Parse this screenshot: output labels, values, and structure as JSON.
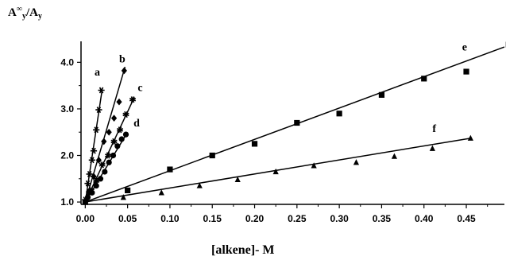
{
  "chart_data": {
    "type": "scatter",
    "title": "",
    "ylabel": {
      "main": "A",
      "sup": "∞",
      "sub_mid": "y",
      "slash": "/A",
      "sub_end": "y"
    },
    "xlabel": "[alkene]- M",
    "xlim": [
      -0.005,
      0.495
    ],
    "ylim": [
      0.95,
      4.45
    ],
    "x_ticks": [
      0.0,
      0.05,
      0.1,
      0.15,
      0.2,
      0.25,
      0.3,
      0.35,
      0.4,
      0.45
    ],
    "x_tick_labels": [
      "0.00",
      "0.05",
      "0.10",
      "0.15",
      "0.20",
      "0.25",
      "0.30",
      "0.35",
      "0.40",
      "0.45"
    ],
    "y_ticks": [
      1.0,
      2.0,
      3.0,
      4.0
    ],
    "y_tick_labels": [
      "1.0",
      "2.0",
      "3.0",
      "4.0"
    ],
    "grid": false,
    "series": [
      {
        "name": "a",
        "marker": "asterisk",
        "label": "a",
        "x": [
          0.0,
          0.003,
          0.005,
          0.008,
          0.01,
          0.013,
          0.016,
          0.019
        ],
        "y": [
          1.05,
          1.4,
          1.6,
          1.9,
          2.1,
          2.55,
          2.98,
          3.4
        ],
        "fit": {
          "x0": 0.0,
          "y0": 1.0,
          "x1": 0.02,
          "y1": 3.42
        },
        "label_pos": {
          "x": 0.011,
          "y": 3.72
        }
      },
      {
        "name": "b",
        "marker": "diamond",
        "label": "b",
        "x": [
          0.004,
          0.01,
          0.016,
          0.022,
          0.028,
          0.034,
          0.04,
          0.046
        ],
        "y": [
          1.22,
          1.55,
          1.9,
          2.3,
          2.5,
          2.8,
          3.15,
          3.82
        ],
        "fit": {
          "x0": 0.0,
          "y0": 1.0,
          "x1": 0.047,
          "y1": 3.9
        },
        "label_pos": {
          "x": 0.04,
          "y": 4.0
        }
      },
      {
        "name": "c",
        "marker": "star",
        "label": "c",
        "x": [
          0.007,
          0.013,
          0.02,
          0.027,
          0.034,
          0.041,
          0.048,
          0.056
        ],
        "y": [
          1.25,
          1.45,
          1.8,
          2.0,
          2.3,
          2.55,
          2.88,
          3.2
        ],
        "fit": {
          "x0": 0.0,
          "y0": 1.0,
          "x1": 0.058,
          "y1": 3.25
        },
        "label_pos": {
          "x": 0.062,
          "y": 3.38
        }
      },
      {
        "name": "d",
        "marker": "circle",
        "label": "d",
        "x": [
          0.003,
          0.008,
          0.013,
          0.018,
          0.023,
          0.028,
          0.033,
          0.038,
          0.043,
          0.048
        ],
        "y": [
          1.1,
          1.2,
          1.35,
          1.5,
          1.65,
          1.85,
          2.0,
          2.2,
          2.35,
          2.45
        ],
        "fit": {
          "x0": 0.0,
          "y0": 1.0,
          "x1": 0.05,
          "y1": 2.5
        },
        "label_pos": {
          "x": 0.057,
          "y": 2.62
        }
      },
      {
        "name": "e",
        "marker": "square",
        "label": "e",
        "x": [
          0.0,
          0.05,
          0.1,
          0.15,
          0.2,
          0.25,
          0.3,
          0.35,
          0.4,
          0.45,
          0.5
        ],
        "y": [
          1.0,
          1.25,
          1.7,
          2.0,
          2.25,
          2.7,
          2.9,
          3.3,
          3.65,
          3.8,
          4.38
        ],
        "fit": {
          "x0": 0.0,
          "y0": 1.0,
          "x1": 0.495,
          "y1": 4.33
        },
        "label_pos": {
          "x": 0.445,
          "y": 4.25
        }
      },
      {
        "name": "f",
        "marker": "triangle",
        "label": "f",
        "x": [
          0.0,
          0.045,
          0.09,
          0.135,
          0.18,
          0.225,
          0.27,
          0.32,
          0.365,
          0.41,
          0.455
        ],
        "y": [
          1.0,
          1.1,
          1.2,
          1.35,
          1.48,
          1.65,
          1.78,
          1.85,
          1.98,
          2.15,
          2.37
        ],
        "fit": {
          "x0": 0.0,
          "y0": 1.0,
          "x1": 0.455,
          "y1": 2.37
        },
        "label_pos": {
          "x": 0.41,
          "y": 2.5
        }
      }
    ]
  }
}
